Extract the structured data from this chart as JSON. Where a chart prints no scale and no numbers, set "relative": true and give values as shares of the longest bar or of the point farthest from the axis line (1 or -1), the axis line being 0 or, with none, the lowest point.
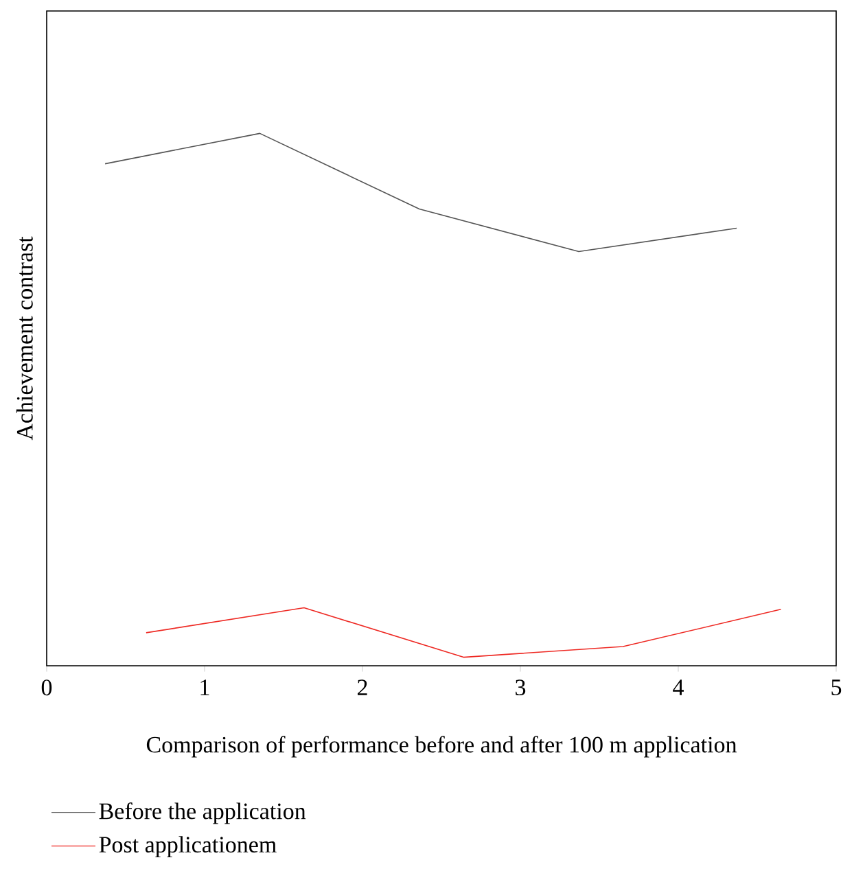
{
  "chart_data": {
    "type": "line",
    "relative": true,
    "xlabel": "Comparison of performance before and after 100 m application",
    "ylabel": "Achievement contrast",
    "xlim": [
      0,
      5
    ],
    "xticks": [
      0,
      1,
      2,
      3,
      4,
      5
    ],
    "legend": "bottom",
    "series": [
      {
        "name": "Before the application",
        "color": "#555555",
        "x": [
          0.37,
          1.35,
          2.36,
          3.37,
          4.37
        ],
        "values": [
          0.943,
          1,
          0.858,
          0.778,
          0.822
        ]
      },
      {
        "name": "Post applicationem",
        "color": "#ee2a24",
        "x": [
          0.63,
          1.63,
          2.64,
          3.65,
          4.65
        ],
        "values": [
          0.062,
          0.109,
          0.016,
          0.036,
          0.106
        ]
      }
    ]
  }
}
